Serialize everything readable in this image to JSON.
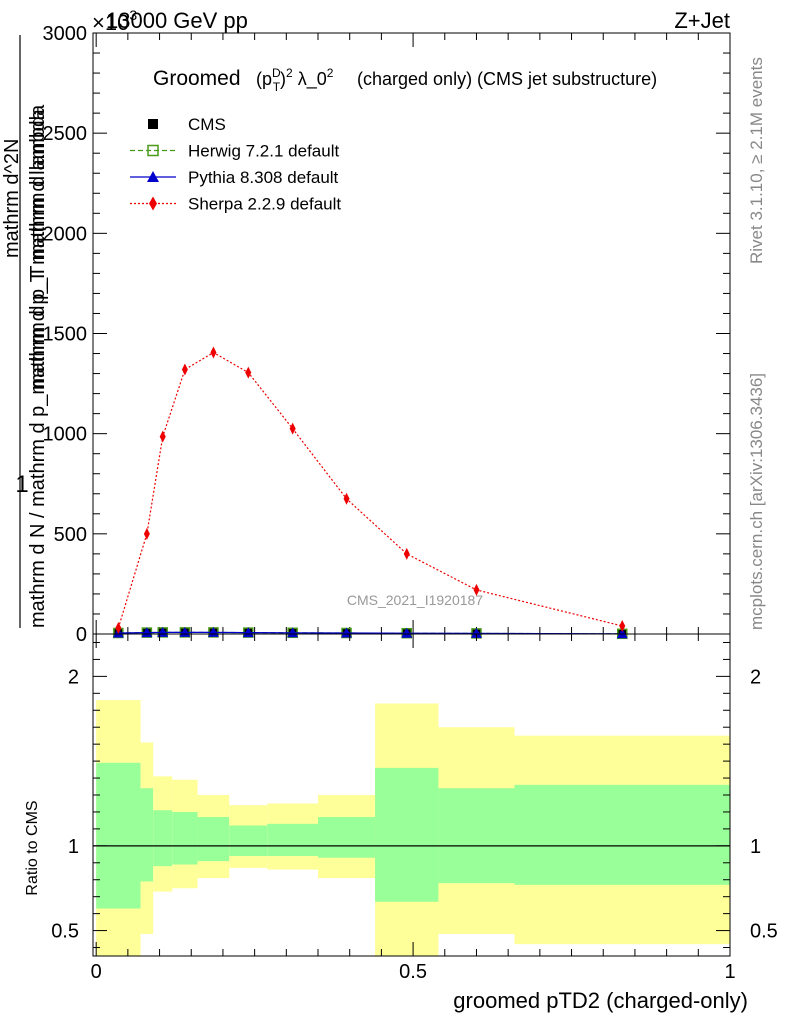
{
  "header": {
    "left": "13000 GeV pp",
    "right": "Z+Jet",
    "exponent": "×10",
    "exponent_power": "3"
  },
  "side_labels": {
    "rivet": "Rivet 3.1.10, ≥ 2.1M events",
    "mcplots": "mcplots.cern.ch [arXiv:1306.3436]"
  },
  "watermark": "CMS_2021_I1920187",
  "chart_data": {
    "type": "line",
    "title_prefix": "Groomed",
    "title_formula": "(p_T^D)^2 λ_0^2",
    "title_suffix": "(charged only) (CMS jet substructure)",
    "xlabel": "groomed pTD2 (charged-only)",
    "ylabel_numerator": "1",
    "ylabel_denominator": "mathrm d N / mathrm d p_mathrm d p_T mathrm d lambda",
    "ylabel_top": "mathrm d^2N",
    "ylabel_top2": "mathrm d p_T mathrm d lambda",
    "xlim": [
      -0.005,
      1.0
    ],
    "ylim": [
      0,
      3000
    ],
    "yticks": [
      0,
      500,
      1000,
      1500,
      2000,
      2500,
      3000
    ],
    "ytick_labels": [
      "0",
      "500",
      "1000",
      "1500",
      "2000",
      "2500",
      "3000"
    ],
    "xticks": [
      0,
      0.5,
      1
    ],
    "xtick_labels": [
      "0",
      "0.5",
      "1"
    ],
    "legend": [
      {
        "name": "CMS",
        "marker": "square",
        "color": "#000000"
      },
      {
        "name": "Herwig 7.2.1 default",
        "marker": "open-square",
        "color": "#4a9a1a",
        "line": "dashed"
      },
      {
        "name": "Pythia 8.308 default",
        "marker": "triangle",
        "color": "#0000cc",
        "line": "solid"
      },
      {
        "name": "Sherpa 2.2.9 default",
        "marker": "diamond",
        "color": "#ee0000",
        "line": "dotted"
      }
    ],
    "series": [
      {
        "name": "CMS",
        "x": [
          0.035,
          0.08,
          0.105,
          0.14,
          0.185,
          0.24,
          0.31,
          0.395,
          0.49,
          0.6,
          0.83
        ],
        "values": [
          5,
          7,
          8,
          8,
          8,
          7,
          6,
          5,
          4,
          3,
          1
        ]
      },
      {
        "name": "Herwig 7.2.1 default",
        "x": [
          0.035,
          0.08,
          0.105,
          0.14,
          0.185,
          0.24,
          0.31,
          0.395,
          0.49,
          0.6,
          0.83
        ],
        "values": [
          5,
          7,
          8,
          8,
          8,
          7,
          6,
          5,
          4,
          3,
          1
        ]
      },
      {
        "name": "Pythia 8.308 default",
        "x": [
          0.035,
          0.08,
          0.105,
          0.14,
          0.185,
          0.24,
          0.31,
          0.395,
          0.49,
          0.6,
          0.83
        ],
        "values": [
          5,
          7,
          8,
          8,
          8,
          7,
          6,
          5,
          4,
          3,
          1
        ]
      },
      {
        "name": "Sherpa 2.2.9 default",
        "x": [
          0.035,
          0.08,
          0.105,
          0.14,
          0.185,
          0.24,
          0.31,
          0.395,
          0.49,
          0.6,
          0.83
        ],
        "values": [
          30,
          500,
          985,
          1320,
          1405,
          1305,
          1025,
          675,
          400,
          220,
          40
        ]
      }
    ],
    "ratio": {
      "ylabel": "Ratio to CMS",
      "ylim": [
        0.35,
        2.25
      ],
      "yticks": [
        0.5,
        1,
        2
      ],
      "ytick_labels": [
        "0.5",
        "1",
        "2"
      ],
      "bands": [
        {
          "x0": 0.0,
          "x1": 0.07,
          "g_lo": 0.63,
          "g_hi": 1.49,
          "y_lo": 0.35,
          "y_hi": 1.86
        },
        {
          "x0": 0.07,
          "x1": 0.09,
          "g_lo": 0.79,
          "g_hi": 1.34,
          "y_lo": 0.48,
          "y_hi": 1.61
        },
        {
          "x0": 0.09,
          "x1": 0.12,
          "g_lo": 0.88,
          "g_hi": 1.21,
          "y_lo": 0.73,
          "y_hi": 1.41
        },
        {
          "x0": 0.12,
          "x1": 0.16,
          "g_lo": 0.89,
          "g_hi": 1.2,
          "y_lo": 0.75,
          "y_hi": 1.39
        },
        {
          "x0": 0.16,
          "x1": 0.21,
          "g_lo": 0.91,
          "g_hi": 1.17,
          "y_lo": 0.81,
          "y_hi": 1.3
        },
        {
          "x0": 0.21,
          "x1": 0.27,
          "g_lo": 0.94,
          "g_hi": 1.12,
          "y_lo": 0.87,
          "y_hi": 1.24
        },
        {
          "x0": 0.27,
          "x1": 0.35,
          "g_lo": 0.94,
          "g_hi": 1.13,
          "y_lo": 0.86,
          "y_hi": 1.25
        },
        {
          "x0": 0.35,
          "x1": 0.44,
          "g_lo": 0.93,
          "g_hi": 1.17,
          "y_lo": 0.81,
          "y_hi": 1.3
        },
        {
          "x0": 0.44,
          "x1": 0.54,
          "g_lo": 0.67,
          "g_hi": 1.46,
          "y_lo": 0.35,
          "y_hi": 1.84
        },
        {
          "x0": 0.54,
          "x1": 0.66,
          "g_lo": 0.78,
          "g_hi": 1.34,
          "y_lo": 0.48,
          "y_hi": 1.7
        },
        {
          "x0": 0.66,
          "x1": 1.0,
          "g_lo": 0.77,
          "g_hi": 1.36,
          "y_lo": 0.42,
          "y_hi": 1.65
        }
      ]
    }
  }
}
